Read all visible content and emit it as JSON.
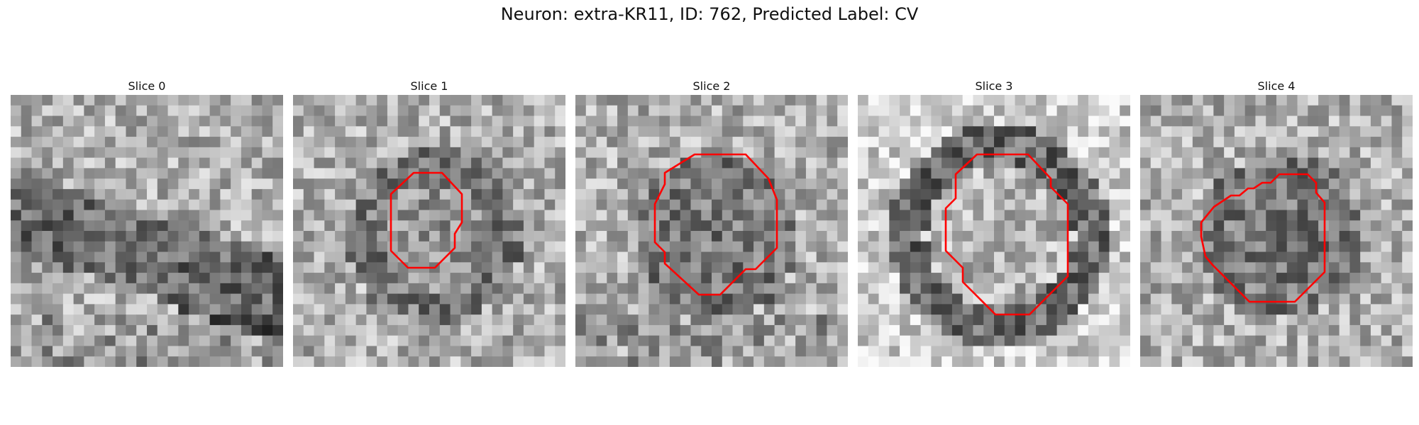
{
  "figure": {
    "title": "Neuron: extra-KR11, ID: 762, Predicted Label: CV"
  },
  "slices": [
    {
      "label": "Slice 0",
      "has_contour": false,
      "seed": 11,
      "dark_region": "diagonal-band",
      "palette": "grayscale"
    },
    {
      "label": "Slice 1",
      "has_contour": true,
      "seed": 23,
      "dark_region": "center-ring",
      "palette": "grayscale"
    },
    {
      "label": "Slice 2",
      "has_contour": true,
      "seed": 37,
      "dark_region": "center-blob",
      "palette": "grayscale"
    },
    {
      "label": "Slice 3",
      "has_contour": true,
      "seed": 51,
      "dark_region": "ring",
      "palette": "grayscale"
    },
    {
      "label": "Slice 4",
      "has_contour": true,
      "seed": 67,
      "dark_region": "center-blob",
      "palette": "grayscale"
    }
  ],
  "colors": {
    "contour": "#ff0000",
    "background": "#ffffff"
  }
}
